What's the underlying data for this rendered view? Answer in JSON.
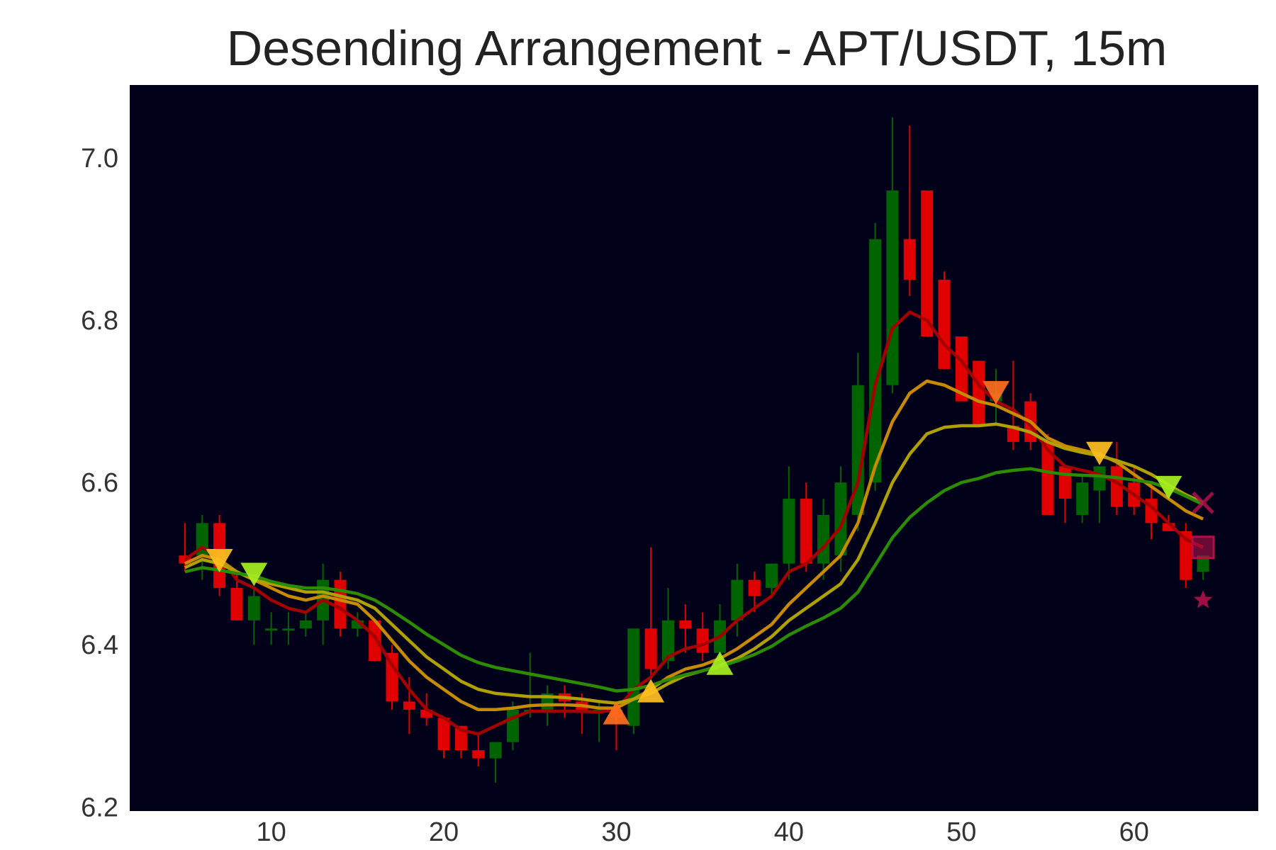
{
  "chart_data": {
    "type": "candlestick",
    "title": "Desending Arrangement - APT/USDT, 15m",
    "xlabel": "",
    "ylabel": "",
    "xlim": [
      1.8,
      67.2
    ],
    "ylim": [
      6.195,
      7.09
    ],
    "x_ticks": [
      10,
      20,
      30,
      40,
      50,
      60
    ],
    "y_ticks": [
      6.2,
      6.4,
      6.6,
      6.8,
      7.0
    ],
    "y_tick_labels": [
      "6.2",
      "6.4",
      "6.6",
      "6.8",
      "7.0"
    ],
    "grid": false,
    "legend": "none",
    "candles": {
      "x": [
        5,
        6,
        7,
        8,
        9,
        10,
        11,
        12,
        13,
        14,
        15,
        16,
        17,
        18,
        19,
        20,
        21,
        22,
        23,
        24,
        25,
        26,
        27,
        28,
        29,
        30,
        31,
        32,
        33,
        34,
        35,
        36,
        37,
        38,
        39,
        40,
        41,
        42,
        43,
        44,
        45,
        46,
        47,
        48,
        49,
        50,
        51,
        52,
        53,
        54,
        55,
        56,
        57,
        58,
        59,
        60,
        61,
        62,
        63,
        64
      ],
      "open": [
        6.51,
        6.51,
        6.55,
        6.47,
        6.43,
        6.42,
        6.42,
        6.42,
        6.43,
        6.48,
        6.42,
        6.43,
        6.39,
        6.33,
        6.32,
        6.31,
        6.3,
        6.27,
        6.26,
        6.28,
        6.32,
        6.32,
        6.34,
        6.33,
        6.32,
        6.32,
        6.3,
        6.42,
        6.38,
        6.43,
        6.42,
        6.39,
        6.43,
        6.48,
        6.47,
        6.5,
        6.58,
        6.5,
        6.51,
        6.56,
        6.6,
        6.72,
        6.9,
        6.96,
        6.85,
        6.78,
        6.75,
        6.7,
        6.67,
        6.7,
        6.65,
        6.62,
        6.56,
        6.59,
        6.62,
        6.6,
        6.58,
        6.55,
        6.54,
        6.49
      ],
      "high": [
        6.55,
        6.56,
        6.56,
        6.49,
        6.47,
        6.44,
        6.44,
        6.44,
        6.5,
        6.49,
        6.44,
        6.43,
        6.4,
        6.36,
        6.34,
        6.31,
        6.3,
        6.29,
        6.28,
        6.33,
        6.39,
        6.35,
        6.35,
        6.34,
        6.33,
        6.33,
        6.42,
        6.52,
        6.47,
        6.45,
        6.44,
        6.45,
        6.5,
        6.49,
        6.5,
        6.62,
        6.6,
        6.58,
        6.62,
        6.76,
        6.92,
        7.05,
        7.04,
        6.96,
        6.86,
        6.78,
        6.75,
        6.74,
        6.75,
        6.71,
        6.66,
        6.62,
        6.61,
        6.62,
        6.65,
        6.62,
        6.6,
        6.56,
        6.55,
        6.51
      ],
      "low": [
        6.49,
        6.48,
        6.46,
        6.43,
        6.4,
        6.4,
        6.4,
        6.41,
        6.4,
        6.41,
        6.41,
        6.38,
        6.32,
        6.29,
        6.3,
        6.26,
        6.26,
        6.25,
        6.23,
        6.27,
        6.31,
        6.3,
        6.31,
        6.29,
        6.28,
        6.27,
        6.29,
        6.36,
        6.37,
        6.39,
        6.38,
        6.38,
        6.41,
        6.44,
        6.46,
        6.48,
        6.49,
        6.48,
        6.49,
        6.54,
        6.59,
        6.71,
        6.83,
        6.84,
        6.76,
        6.73,
        6.7,
        6.67,
        6.64,
        6.64,
        6.62,
        6.55,
        6.55,
        6.55,
        6.56,
        6.56,
        6.53,
        6.54,
        6.47,
        6.48
      ],
      "close": [
        6.5,
        6.55,
        6.47,
        6.43,
        6.46,
        6.42,
        6.42,
        6.43,
        6.48,
        6.42,
        6.43,
        6.38,
        6.33,
        6.32,
        6.31,
        6.27,
        6.27,
        6.26,
        6.28,
        6.32,
        6.32,
        6.34,
        6.33,
        6.32,
        6.32,
        6.31,
        6.42,
        6.37,
        6.43,
        6.42,
        6.39,
        6.43,
        6.48,
        6.46,
        6.5,
        6.58,
        6.5,
        6.56,
        6.6,
        6.72,
        6.9,
        6.96,
        6.85,
        6.78,
        6.74,
        6.7,
        6.67,
        6.71,
        6.65,
        6.65,
        6.56,
        6.58,
        6.6,
        6.62,
        6.57,
        6.57,
        6.55,
        6.54,
        6.48,
        6.51
      ]
    },
    "series": [
      {
        "color": "#a40000",
        "x": [
          5,
          6,
          7,
          8,
          9,
          10,
          11,
          12,
          13,
          14,
          15,
          16,
          17,
          18,
          19,
          20,
          21,
          22,
          23,
          24,
          25,
          26,
          27,
          28,
          29,
          30,
          31,
          32,
          33,
          34,
          35,
          36,
          37,
          38,
          39,
          40,
          41,
          42,
          43,
          44,
          45,
          46,
          47,
          48,
          49,
          50,
          51,
          52,
          53,
          54,
          55,
          56,
          57,
          58,
          59,
          60,
          61,
          62,
          63,
          64
        ],
        "values": [
          6.505,
          6.52,
          6.51,
          6.48,
          6.47,
          6.455,
          6.445,
          6.44,
          6.455,
          6.445,
          6.43,
          6.41,
          6.375,
          6.345,
          6.32,
          6.31,
          6.295,
          6.29,
          6.3,
          6.31,
          6.318,
          6.318,
          6.318,
          6.318,
          6.317,
          6.32,
          6.345,
          6.36,
          6.385,
          6.395,
          6.4,
          6.41,
          6.43,
          6.445,
          6.46,
          6.49,
          6.5,
          6.52,
          6.545,
          6.6,
          6.72,
          6.79,
          6.81,
          6.8,
          6.77,
          6.75,
          6.72,
          6.7,
          6.69,
          6.67,
          6.64,
          6.62,
          6.615,
          6.61,
          6.6,
          6.585,
          6.57,
          6.55,
          6.53,
          6.52
        ]
      },
      {
        "color": "#c88a00",
        "x": [
          5,
          6,
          7,
          8,
          9,
          10,
          11,
          12,
          13,
          14,
          15,
          16,
          17,
          18,
          19,
          20,
          21,
          22,
          23,
          24,
          25,
          26,
          27,
          28,
          29,
          30,
          31,
          32,
          33,
          34,
          35,
          36,
          37,
          38,
          39,
          40,
          41,
          42,
          43,
          44,
          45,
          46,
          47,
          48,
          49,
          50,
          51,
          52,
          53,
          54,
          55,
          56,
          57,
          58,
          59,
          60,
          61,
          62,
          63,
          64
        ],
        "values": [
          6.5,
          6.51,
          6.505,
          6.49,
          6.48,
          6.47,
          6.46,
          6.455,
          6.46,
          6.455,
          6.45,
          6.43,
          6.405,
          6.38,
          6.36,
          6.345,
          6.33,
          6.32,
          6.32,
          6.322,
          6.325,
          6.326,
          6.326,
          6.325,
          6.322,
          6.322,
          6.333,
          6.345,
          6.36,
          6.37,
          6.375,
          6.383,
          6.395,
          6.41,
          6.425,
          6.45,
          6.47,
          6.49,
          6.51,
          6.55,
          6.62,
          6.675,
          6.71,
          6.725,
          6.72,
          6.71,
          6.7,
          6.695,
          6.685,
          6.675,
          6.655,
          6.645,
          6.64,
          6.635,
          6.625,
          6.61,
          6.595,
          6.58,
          6.565,
          6.555
        ]
      },
      {
        "color": "#b0a000",
        "x": [
          5,
          6,
          7,
          8,
          9,
          10,
          11,
          12,
          13,
          14,
          15,
          16,
          17,
          18,
          19,
          20,
          21,
          22,
          23,
          24,
          25,
          26,
          27,
          28,
          29,
          30,
          31,
          32,
          33,
          34,
          35,
          36,
          37,
          38,
          39,
          40,
          41,
          42,
          43,
          44,
          45,
          46,
          47,
          48,
          49,
          50,
          51,
          52,
          53,
          54,
          55,
          56,
          57,
          58,
          59,
          60,
          61,
          62,
          63,
          64
        ],
        "values": [
          6.495,
          6.505,
          6.5,
          6.49,
          6.48,
          6.475,
          6.47,
          6.465,
          6.465,
          6.46,
          6.455,
          6.445,
          6.425,
          6.405,
          6.385,
          6.37,
          6.355,
          6.345,
          6.34,
          6.338,
          6.336,
          6.336,
          6.335,
          6.333,
          6.33,
          6.328,
          6.333,
          6.34,
          6.352,
          6.362,
          6.368,
          6.374,
          6.383,
          6.395,
          6.41,
          6.43,
          6.445,
          6.46,
          6.475,
          6.505,
          6.55,
          6.6,
          6.635,
          6.66,
          6.668,
          6.67,
          6.67,
          6.672,
          6.668,
          6.662,
          6.65,
          6.642,
          6.637,
          6.633,
          6.627,
          6.62,
          6.61,
          6.597,
          6.585,
          6.575
        ]
      },
      {
        "color": "#2b8c00",
        "x": [
          5,
          6,
          7,
          8,
          9,
          10,
          11,
          12,
          13,
          14,
          15,
          16,
          17,
          18,
          19,
          20,
          21,
          22,
          23,
          24,
          25,
          26,
          27,
          28,
          29,
          30,
          31,
          32,
          33,
          34,
          35,
          36,
          37,
          38,
          39,
          40,
          41,
          42,
          43,
          44,
          45,
          46,
          47,
          48,
          49,
          50,
          51,
          52,
          53,
          54,
          55,
          56,
          57,
          58,
          59,
          60,
          61,
          62,
          63,
          64
        ],
        "values": [
          6.49,
          6.495,
          6.492,
          6.488,
          6.485,
          6.478,
          6.473,
          6.47,
          6.47,
          6.467,
          6.463,
          6.455,
          6.442,
          6.428,
          6.413,
          6.4,
          6.387,
          6.378,
          6.372,
          6.368,
          6.364,
          6.36,
          6.356,
          6.352,
          6.348,
          6.343,
          6.345,
          6.35,
          6.357,
          6.363,
          6.368,
          6.373,
          6.38,
          6.388,
          6.398,
          6.412,
          6.423,
          6.433,
          6.445,
          6.465,
          6.498,
          6.532,
          6.557,
          6.575,
          6.59,
          6.6,
          6.605,
          6.612,
          6.615,
          6.617,
          6.613,
          6.61,
          6.609,
          6.608,
          6.606,
          6.603,
          6.6,
          6.593,
          6.583,
          6.573
        ]
      }
    ],
    "markers": [
      {
        "shape": "triangle-down",
        "x": 7,
        "y": 6.505,
        "color": "#ffc020"
      },
      {
        "shape": "triangle-down",
        "x": 9,
        "y": 6.488,
        "color": "#a8f020"
      },
      {
        "shape": "triangle-up",
        "x": 30,
        "y": 6.315,
        "color": "#ff7020"
      },
      {
        "shape": "triangle-up",
        "x": 32,
        "y": 6.342,
        "color": "#ffc020"
      },
      {
        "shape": "triangle-up",
        "x": 36,
        "y": 6.376,
        "color": "#a8f020"
      },
      {
        "shape": "triangle-down",
        "x": 52,
        "y": 6.712,
        "color": "#ff7020"
      },
      {
        "shape": "triangle-down",
        "x": 58,
        "y": 6.637,
        "color": "#ffc020"
      },
      {
        "shape": "triangle-down",
        "x": 62,
        "y": 6.595,
        "color": "#a8f020"
      },
      {
        "shape": "x",
        "x": 64,
        "y": 6.575,
        "color": "#b0104a"
      },
      {
        "shape": "square",
        "x": 64,
        "y": 6.52,
        "color": "#b0104a"
      },
      {
        "shape": "star",
        "x": 64,
        "y": 6.455,
        "color": "#b0104a"
      }
    ],
    "colors": {
      "background": "#02011a",
      "up": "#006400",
      "down": "#e00000"
    }
  }
}
